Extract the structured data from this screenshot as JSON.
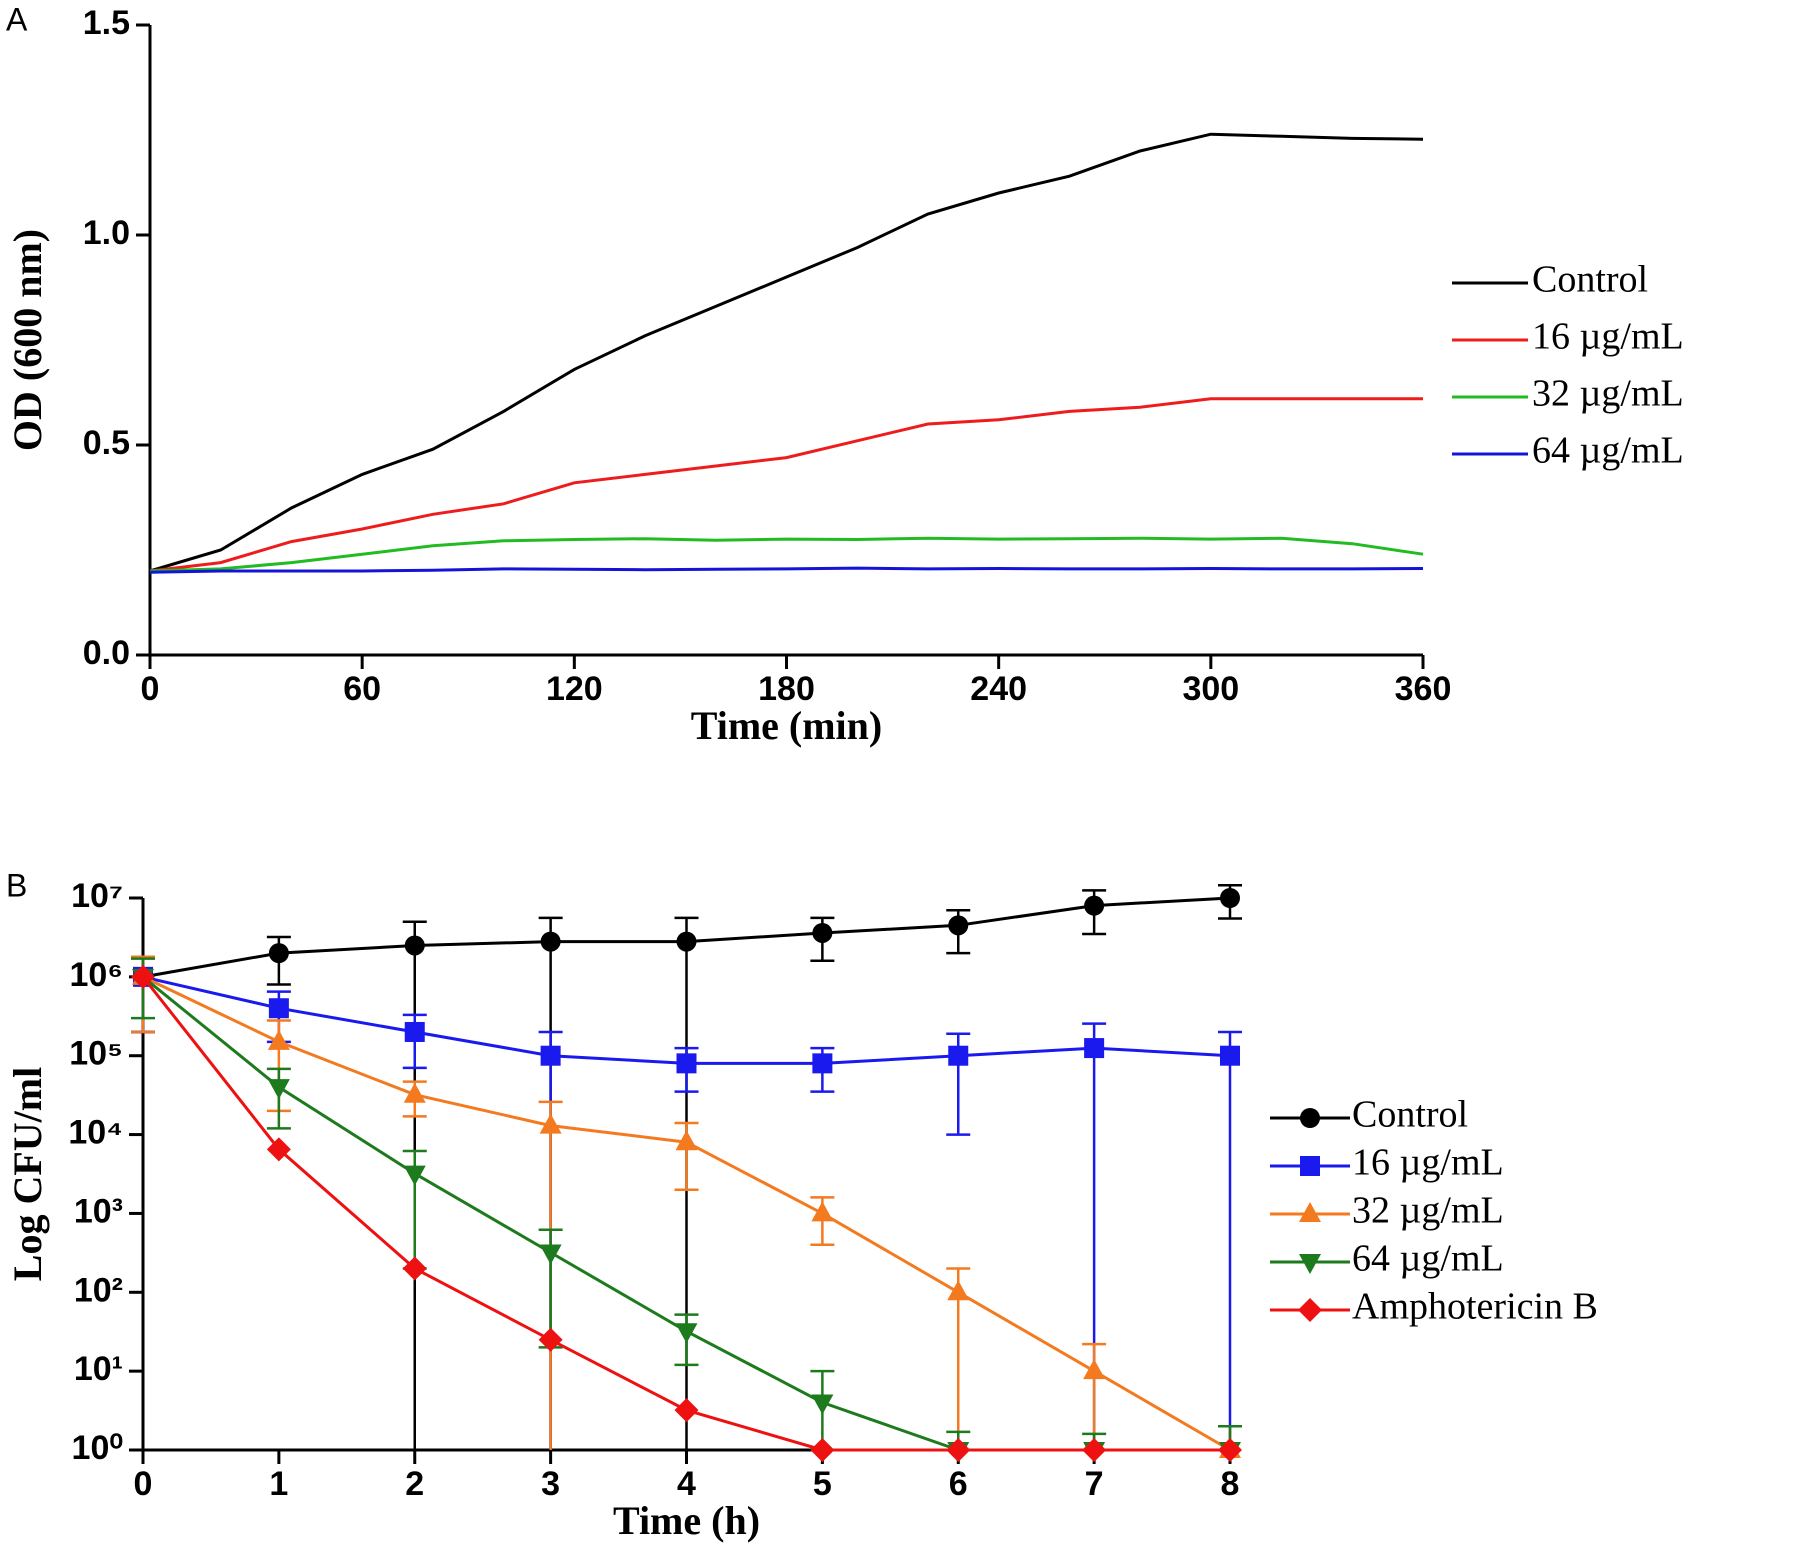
{
  "chart_data": [
    {
      "type": "line",
      "panel": "A",
      "xlabel": "Time (min)",
      "ylabel": "OD (600 nm)",
      "x": [
        0,
        20,
        40,
        60,
        80,
        100,
        120,
        140,
        160,
        180,
        200,
        220,
        240,
        260,
        280,
        300,
        320,
        340,
        360
      ],
      "series": [
        {
          "name": "Control",
          "color": "#000000",
          "values": [
            0.2,
            0.25,
            0.35,
            0.43,
            0.49,
            0.58,
            0.68,
            0.76,
            0.83,
            0.9,
            0.97,
            1.05,
            1.1,
            1.14,
            1.2,
            1.24,
            1.235,
            1.23,
            1.228
          ]
        },
        {
          "name": "16 µg/mL",
          "color": "#ee1c1c",
          "values": [
            0.2,
            0.22,
            0.27,
            0.3,
            0.335,
            0.36,
            0.41,
            0.43,
            0.45,
            0.47,
            0.51,
            0.55,
            0.56,
            0.58,
            0.59,
            0.61,
            0.61,
            0.61,
            0.61
          ]
        },
        {
          "name": "32 µg/mL",
          "color": "#22bb22",
          "values": [
            0.2,
            0.205,
            0.22,
            0.24,
            0.26,
            0.272,
            0.275,
            0.277,
            0.273,
            0.276,
            0.275,
            0.278,
            0.276,
            0.277,
            0.278,
            0.276,
            0.278,
            0.265,
            0.24
          ]
        },
        {
          "name": "64 µg/mL",
          "color": "#1414d8",
          "values": [
            0.197,
            0.2,
            0.2,
            0.2,
            0.202,
            0.205,
            0.204,
            0.203,
            0.204,
            0.205,
            0.207,
            0.205,
            0.206,
            0.205,
            0.205,
            0.206,
            0.205,
            0.205,
            0.206
          ]
        }
      ],
      "xlim": [
        0,
        360
      ],
      "xticks": [
        0,
        60,
        120,
        180,
        240,
        300,
        360
      ],
      "ylim": [
        0,
        1.5
      ],
      "yticks": [
        {
          "value": 0,
          "label": "0.0"
        },
        0.5,
        {
          "value": 1,
          "label": "1.0"
        },
        1.5
      ]
    },
    {
      "type": "line",
      "panel": "B",
      "xlabel": "Time (h)",
      "ylabel": "Log CFU/ml",
      "yscale": "log",
      "x": [
        0,
        1,
        2,
        3,
        4,
        5,
        6,
        7,
        8
      ],
      "series": [
        {
          "name": "Control",
          "color": "#000000",
          "marker": "circle",
          "values": [
            1000000,
            2000000,
            2500000,
            2800000,
            2800000,
            3600000,
            4500000,
            8000000,
            10000000
          ],
          "errors": [
            800000,
            1200000,
            2500000,
            2800000,
            2800000,
            2000000,
            2500000,
            4500000,
            4500000
          ]
        },
        {
          "name": "16 µg/mL",
          "color": "#1a1aee",
          "marker": "square",
          "values": [
            1000000,
            400000,
            200000,
            100000,
            80000,
            80000,
            100000,
            125000,
            100000
          ],
          "errors": [
            800000,
            250000,
            130000,
            100000,
            45000,
            45000,
            90000,
            130000,
            100000
          ]
        },
        {
          "name": "32 µg/mL",
          "color": "#f47a20",
          "marker": "triangle-up",
          "values": [
            1000000,
            150000,
            32000,
            13000,
            8000,
            1000,
            100,
            10,
            1
          ],
          "errors": [
            800000,
            130000,
            15000,
            13000,
            6000,
            600,
            100,
            12,
            1
          ]
        },
        {
          "name": "64 µg/mL",
          "color": "#1d7a1d",
          "marker": "triangle-down",
          "values": [
            1000000,
            40000,
            3200,
            320,
            32,
            4,
            1,
            1,
            1
          ],
          "errors": [
            700000,
            28000,
            3000,
            300,
            20,
            6,
            0.7,
            0.6,
            1
          ]
        },
        {
          "name": "Amphotericin B",
          "color": "#ee1111",
          "marker": "diamond",
          "values": [
            1000000,
            6500,
            200,
            25,
            3.2,
            1,
            1,
            1,
            1
          ]
        }
      ],
      "xlim": [
        0,
        8
      ],
      "xticks": [
        0,
        1,
        2,
        3,
        4,
        5,
        6,
        7,
        8
      ],
      "ylim": [
        1,
        10000000
      ],
      "yticks": [
        {
          "value": 1,
          "label": "10⁰"
        },
        {
          "value": 10,
          "label": "10¹"
        },
        {
          "value": 100,
          "label": "10²"
        },
        {
          "value": 1000,
          "label": "10³"
        },
        {
          "value": 10000,
          "label": "10⁴"
        },
        {
          "value": 100000,
          "label": "10⁵"
        },
        {
          "value": 1000000,
          "label": "10⁶"
        },
        {
          "value": 10000000,
          "label": "10⁷"
        }
      ]
    }
  ]
}
